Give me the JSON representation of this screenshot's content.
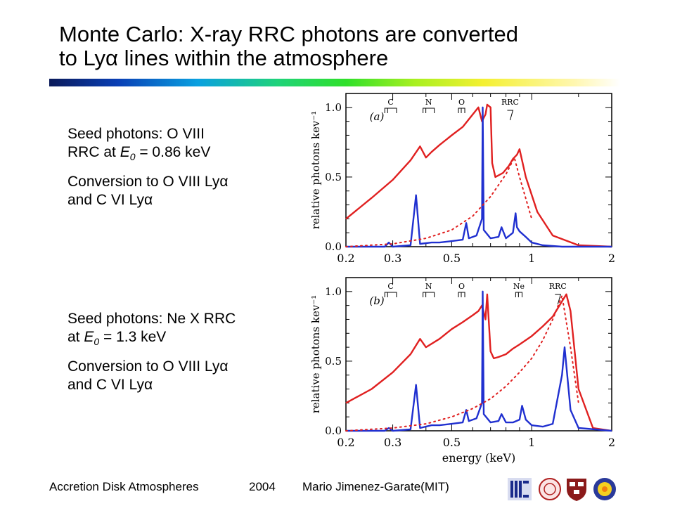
{
  "slide": {
    "title_line1": "Monte Carlo: X-ray RRC photons are converted",
    "title_line2": "to Lyα lines within the atmosphere"
  },
  "bullets": [
    {
      "line1": "Seed photons: O VIII",
      "line2_pre": "RRC  at ",
      "e_var": "E",
      "e_sub": "0",
      "line2_post": " = 0.86 keV",
      "line3": "Conversion to O VIII Lyα",
      "line4": "and C VI Lyα"
    },
    {
      "line1": "Seed photons: Ne X RRC",
      "line2_pre": "at ",
      "e_var": "E",
      "e_sub": "0",
      "line2_post": " = 1.3 keV",
      "line3": "Conversion to O VIII Lyα",
      "line4": "and C VI Lyα"
    }
  ],
  "footer": {
    "course": "Accretion Disk Atmospheres",
    "year": "2004",
    "author": "Mario Jimenez-Garate(MIT)"
  },
  "logos": [
    "mit-logo-icon",
    "university-seal-icon",
    "harvard-shield-icon",
    "sun-logo-icon"
  ],
  "chart_data": [
    {
      "type": "line",
      "panel": "(a)",
      "x_scale": "log",
      "xlim": [
        0.2,
        2
      ],
      "ylim": [
        0,
        1.1
      ],
      "ylabel": "relative photons kev⁻¹",
      "xlabel": "",
      "x_ticks": [
        0.2,
        0.3,
        0.5,
        1,
        2
      ],
      "x_tick_labels": [
        "0.2",
        "0.3",
        "0.5",
        "1",
        "2"
      ],
      "y_ticks": [
        0,
        0.5,
        1.0
      ],
      "y_tick_labels": [
        "0.0",
        "0.5",
        "1.0"
      ],
      "edge_labels": [
        {
          "text": "C",
          "from": 0.28,
          "to": 0.31
        },
        {
          "text": "N",
          "from": 0.39,
          "to": 0.43
        },
        {
          "text": "O",
          "from": 0.53,
          "to": 0.56
        }
      ],
      "marker": {
        "text": "RRC",
        "x": 0.86
      },
      "colors": {
        "total": "#e02020",
        "lines": "#2030d0",
        "seed": "#e02020"
      },
      "series": [
        {
          "style": "solid",
          "color": "#e02020",
          "x": [
            0.2,
            0.25,
            0.3,
            0.35,
            0.38,
            0.4,
            0.42,
            0.45,
            0.5,
            0.55,
            0.6,
            0.63,
            0.65,
            0.67,
            0.68,
            0.7,
            0.71,
            0.73,
            0.78,
            0.82,
            0.85,
            0.88,
            0.9,
            0.95,
            1.05,
            1.2,
            1.5,
            2
          ],
          "y": [
            0.2,
            0.35,
            0.48,
            0.62,
            0.72,
            0.64,
            0.68,
            0.73,
            0.8,
            0.86,
            0.95,
            1.0,
            0.9,
            0.95,
            1.02,
            1.0,
            0.6,
            0.5,
            0.53,
            0.58,
            0.63,
            0.66,
            0.7,
            0.5,
            0.25,
            0.08,
            0.01,
            0.0
          ]
        },
        {
          "style": "solid",
          "color": "#2030d0",
          "x": [
            0.2,
            0.28,
            0.29,
            0.3,
            0.35,
            0.367,
            0.38,
            0.42,
            0.45,
            0.5,
            0.55,
            0.567,
            0.58,
            0.62,
            0.65,
            0.654,
            0.66,
            0.7,
            0.75,
            0.77,
            0.8,
            0.85,
            0.87,
            0.88,
            0.9,
            0.95,
            1.0,
            1.1,
            1.3,
            2
          ],
          "y": [
            0.0,
            0.0,
            0.03,
            0.0,
            0.01,
            0.37,
            0.02,
            0.03,
            0.03,
            0.04,
            0.05,
            0.17,
            0.06,
            0.08,
            0.2,
            1.0,
            0.12,
            0.06,
            0.07,
            0.14,
            0.06,
            0.1,
            0.24,
            0.14,
            0.11,
            0.07,
            0.03,
            0.01,
            0.0,
            0.0
          ]
        },
        {
          "style": "dotted",
          "color": "#e02020",
          "x": [
            0.2,
            0.3,
            0.4,
            0.5,
            0.6,
            0.7,
            0.8,
            0.86,
            0.9,
            1.0
          ],
          "y": [
            0.0,
            0.02,
            0.06,
            0.12,
            0.22,
            0.36,
            0.52,
            0.64,
            0.5,
            0.2
          ]
        }
      ]
    },
    {
      "type": "line",
      "panel": "(b)",
      "x_scale": "log",
      "xlim": [
        0.2,
        2
      ],
      "ylim": [
        0,
        1.1
      ],
      "ylabel": "relative photons kev⁻¹",
      "xlabel": "energy (keV)",
      "x_ticks": [
        0.2,
        0.3,
        0.5,
        1,
        2
      ],
      "x_tick_labels": [
        "0.2",
        "0.3",
        "0.5",
        "1",
        "2"
      ],
      "y_ticks": [
        0,
        0.5,
        1.0
      ],
      "y_tick_labels": [
        "0.0",
        "0.5",
        "1.0"
      ],
      "edge_labels": [
        {
          "text": "C",
          "from": 0.28,
          "to": 0.31
        },
        {
          "text": "N",
          "from": 0.39,
          "to": 0.43
        },
        {
          "text": "O",
          "from": 0.53,
          "to": 0.56
        },
        {
          "text": "Ne",
          "from": 0.87,
          "to": 0.92
        }
      ],
      "marker": {
        "text": "RRC",
        "x": 1.3
      },
      "colors": {
        "total": "#e02020",
        "lines": "#2030d0",
        "seed": "#e02020"
      },
      "series": [
        {
          "style": "solid",
          "color": "#e02020",
          "x": [
            0.2,
            0.25,
            0.3,
            0.35,
            0.38,
            0.4,
            0.45,
            0.5,
            0.55,
            0.6,
            0.63,
            0.65,
            0.67,
            0.68,
            0.7,
            0.72,
            0.75,
            0.8,
            0.85,
            0.9,
            1.0,
            1.1,
            1.2,
            1.3,
            1.35,
            1.4,
            1.5,
            1.7,
            2
          ],
          "y": [
            0.2,
            0.3,
            0.42,
            0.55,
            0.66,
            0.6,
            0.66,
            0.73,
            0.78,
            0.83,
            0.86,
            0.9,
            0.8,
            0.98,
            0.57,
            0.52,
            0.53,
            0.55,
            0.59,
            0.62,
            0.68,
            0.75,
            0.82,
            0.93,
            0.98,
            0.86,
            0.3,
            0.02,
            0.0
          ]
        },
        {
          "style": "solid",
          "color": "#2030d0",
          "x": [
            0.2,
            0.28,
            0.29,
            0.3,
            0.35,
            0.367,
            0.38,
            0.42,
            0.45,
            0.5,
            0.55,
            0.567,
            0.58,
            0.62,
            0.65,
            0.654,
            0.66,
            0.7,
            0.75,
            0.77,
            0.8,
            0.85,
            0.9,
            0.92,
            0.95,
            1.0,
            1.1,
            1.2,
            1.3,
            1.33,
            1.4,
            1.5,
            2
          ],
          "y": [
            0.0,
            0.0,
            0.02,
            0.0,
            0.01,
            0.33,
            0.02,
            0.04,
            0.04,
            0.05,
            0.06,
            0.15,
            0.07,
            0.09,
            0.2,
            1.0,
            0.12,
            0.06,
            0.07,
            0.12,
            0.06,
            0.06,
            0.08,
            0.18,
            0.08,
            0.04,
            0.03,
            0.05,
            0.4,
            0.6,
            0.15,
            0.02,
            0.0
          ]
        },
        {
          "style": "dotted",
          "color": "#e02020",
          "x": [
            0.2,
            0.3,
            0.4,
            0.5,
            0.6,
            0.7,
            0.8,
            0.9,
            1.0,
            1.1,
            1.2,
            1.3,
            1.4,
            1.5
          ],
          "y": [
            0.0,
            0.02,
            0.05,
            0.1,
            0.16,
            0.23,
            0.32,
            0.42,
            0.52,
            0.65,
            0.8,
            0.97,
            0.6,
            0.2
          ]
        }
      ]
    }
  ]
}
